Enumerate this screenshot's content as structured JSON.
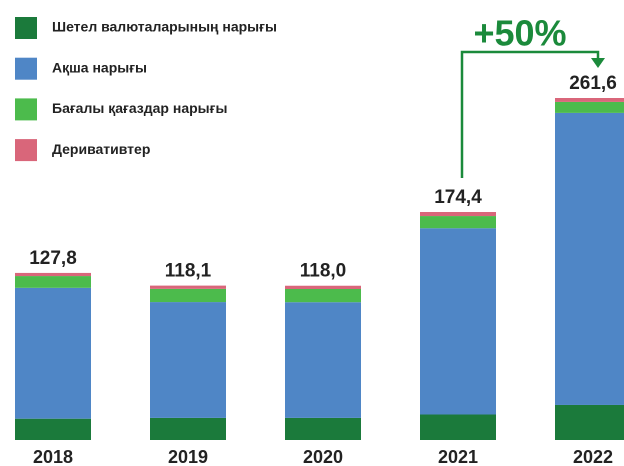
{
  "chart_data": {
    "type": "stacked_bar",
    "categories": [
      "2018",
      "2019",
      "2020",
      "2021",
      "2022"
    ],
    "series": [
      {
        "name": "Шетел валюталарының нарығы",
        "color": "#1b7a3b",
        "values": [
          16.3,
          16.9,
          16.9,
          19.5,
          26.8
        ]
      },
      {
        "name": "Ақша нарығы",
        "color": "#4f86c6",
        "values": [
          100.1,
          88.6,
          88.5,
          142.5,
          223.4
        ]
      },
      {
        "name": "Бағалы қағаздар нарығы",
        "color": "#4cbb4c",
        "values": [
          9.0,
          10.1,
          10.1,
          9.3,
          8.4
        ]
      },
      {
        "name": "Деривативтер",
        "color": "#d9667a",
        "values": [
          2.4,
          2.5,
          2.5,
          3.1,
          3.0
        ]
      }
    ],
    "totals": [
      127.8,
      118.1,
      118.0,
      174.4,
      261.6
    ],
    "total_labels": [
      "127,8",
      "118,1",
      "118,0",
      "174,4",
      "261,6"
    ],
    "annotation": "+50%",
    "annotation_color": "#1b8a3b"
  }
}
